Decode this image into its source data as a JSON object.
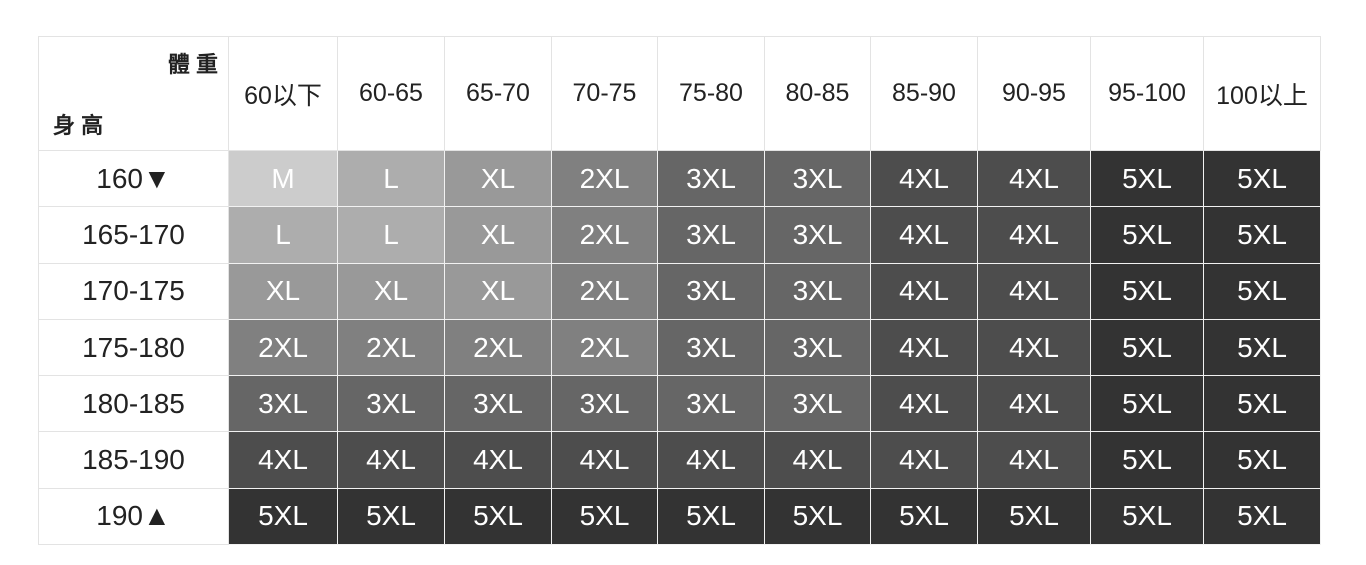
{
  "table": {
    "corner": {
      "weight_label": "體 重",
      "height_label": "身 高"
    },
    "columns": [
      "60以下",
      "60-65",
      "65-70",
      "70-75",
      "75-80",
      "80-85",
      "85-90",
      "90-95",
      "95-100",
      "100以上"
    ],
    "rows": [
      {
        "height": "160▼",
        "sizes": [
          "M",
          "L",
          "XL",
          "2XL",
          "3XL",
          "3XL",
          "4XL",
          "4XL",
          "5XL",
          "5XL"
        ]
      },
      {
        "height": "165-170",
        "sizes": [
          "L",
          "L",
          "XL",
          "2XL",
          "3XL",
          "3XL",
          "4XL",
          "4XL",
          "5XL",
          "5XL"
        ]
      },
      {
        "height": "170-175",
        "sizes": [
          "XL",
          "XL",
          "XL",
          "2XL",
          "3XL",
          "3XL",
          "4XL",
          "4XL",
          "5XL",
          "5XL"
        ]
      },
      {
        "height": "175-180",
        "sizes": [
          "2XL",
          "2XL",
          "2XL",
          "2XL",
          "3XL",
          "3XL",
          "4XL",
          "4XL",
          "5XL",
          "5XL"
        ]
      },
      {
        "height": "180-185",
        "sizes": [
          "3XL",
          "3XL",
          "3XL",
          "3XL",
          "3XL",
          "3XL",
          "4XL",
          "4XL",
          "5XL",
          "5XL"
        ]
      },
      {
        "height": "185-190",
        "sizes": [
          "4XL",
          "4XL",
          "4XL",
          "4XL",
          "4XL",
          "4XL",
          "4XL",
          "4XL",
          "5XL",
          "5XL"
        ]
      },
      {
        "height": "190▲",
        "sizes": [
          "5XL",
          "5XL",
          "5XL",
          "5XL",
          "5XL",
          "5XL",
          "5XL",
          "5XL",
          "5XL",
          "5XL"
        ]
      }
    ],
    "colors": {
      "M": "#cccccc",
      "L": "#adadad",
      "XL": "#999999",
      "2XL": "#808080",
      "3XL": "#666666",
      "4XL": "#4d4d4d",
      "5XL": "#333333"
    }
  }
}
